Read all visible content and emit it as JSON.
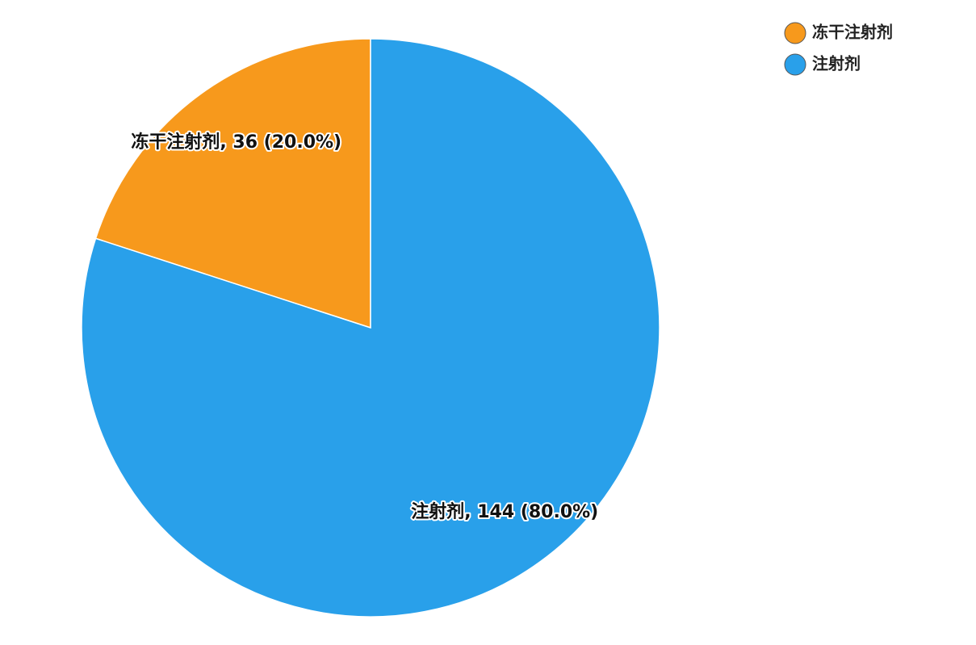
{
  "chart_data": {
    "type": "pie",
    "categories": [
      "冻干注射剂",
      "注射剂"
    ],
    "values": [
      36,
      144
    ],
    "value_labels": [
      "冻干注射剂, 36 (20.0%)",
      "注射剂, 144 (80.0%)"
    ],
    "colors": [
      "#f7991c",
      "#29a0ea"
    ],
    "legend": "top-right"
  }
}
